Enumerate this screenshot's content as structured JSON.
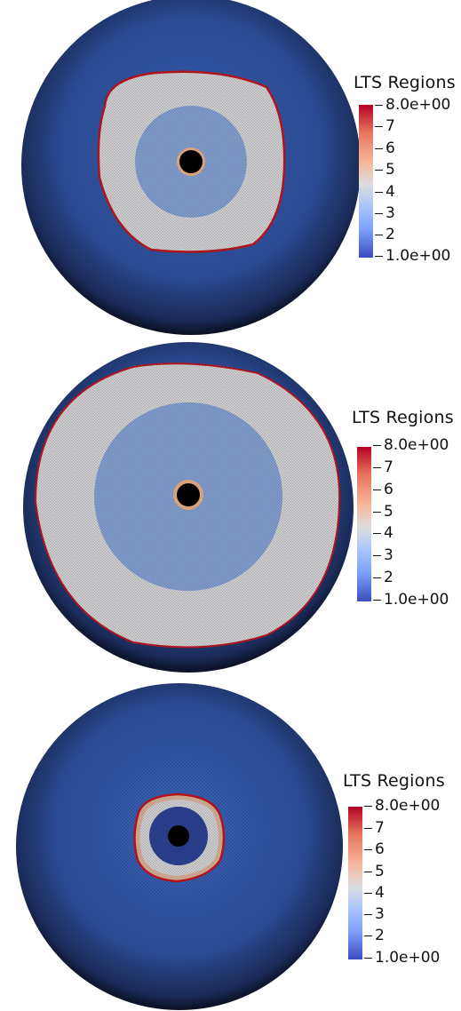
{
  "colors": {
    "region_low": "#2f4fa0",
    "region_mid": "#cfcfd2",
    "region_ring_mid": "#7f9ccf",
    "boundary": "#b3121b",
    "core": "#000000"
  },
  "panels": [
    {
      "legend": {
        "title": "LTS Regions",
        "max_label": "8.0e+00",
        "min_label": "1.0e+00",
        "ticks": [
          "7",
          "6",
          "5",
          "4",
          "3",
          "2"
        ]
      }
    },
    {
      "legend": {
        "title": "LTS Regions",
        "max_label": "8.0e+00",
        "min_label": "1.0e+00",
        "ticks": [
          "7",
          "6",
          "5",
          "4",
          "3",
          "2"
        ]
      }
    },
    {
      "legend": {
        "title": "LTS Regions",
        "max_label": "8.0e+00",
        "min_label": "1.0e+00",
        "ticks": [
          "7",
          "6",
          "5",
          "4",
          "3",
          "2"
        ]
      }
    }
  ]
}
